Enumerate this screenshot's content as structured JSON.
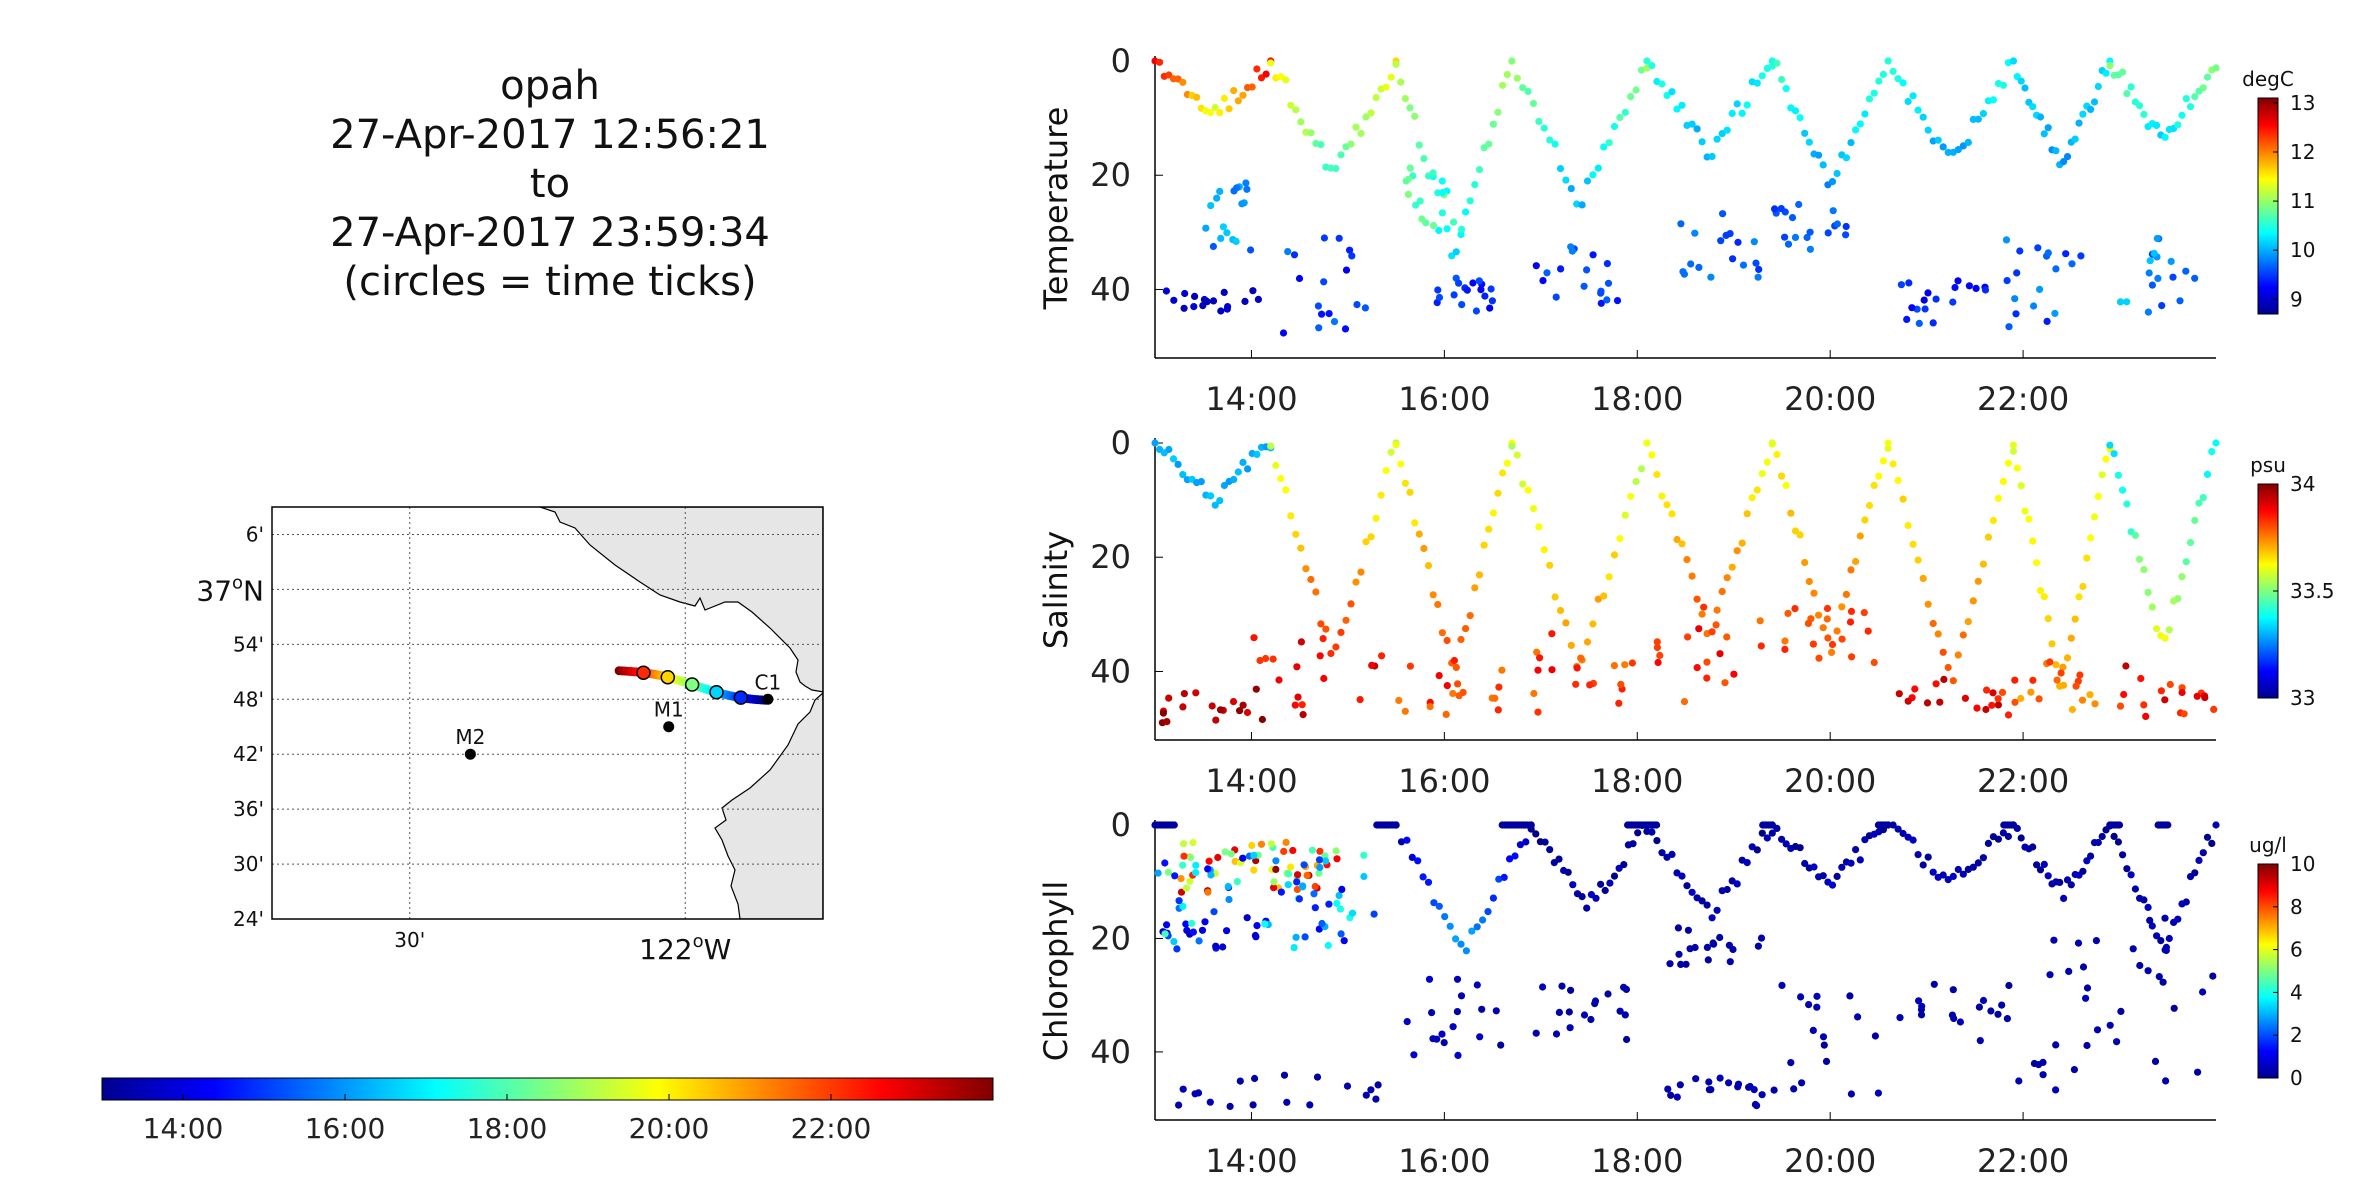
{
  "header": {
    "title_lines": [
      "opah",
      "27-Apr-2017 12:56:21",
      "to",
      "27-Apr-2017 23:59:34",
      "(circles = time ticks)"
    ]
  },
  "time_colorbar": {
    "ticks": [
      "14:00",
      "16:00",
      "18:00",
      "20:00",
      "22:00"
    ],
    "range_hours": [
      13.0,
      24.0
    ],
    "colormap": "jet"
  },
  "map": {
    "lat_ticks": [
      "6'",
      "37°N",
      "54'",
      "48'",
      "42'",
      "36'",
      "30'",
      "24'"
    ],
    "lon_ticks": [
      "30'",
      "122°W"
    ],
    "stations": [
      {
        "name": "M2",
        "lon": -122.39,
        "lat": 36.7
      },
      {
        "name": "M1",
        "lon": -122.03,
        "lat": 36.75
      },
      {
        "name": "C1",
        "lon": -121.85,
        "lat": 36.8
      }
    ],
    "track": {
      "start_lon": -122.12,
      "start_lat": 36.852,
      "end_lon": -121.855,
      "end_lat": 36.8
    },
    "land_color": "#e6e6e6"
  },
  "chart_data": [
    {
      "type": "scatter",
      "ylabel": "Temperature",
      "colorbar": {
        "unit": "degC",
        "ticks": [
          "13",
          "12",
          "11",
          "10",
          "9"
        ],
        "range": [
          8.7,
          13.1
        ],
        "colormap": "jet"
      },
      "x_ticks": [
        "14:00",
        "16:00",
        "18:00",
        "20:00",
        "22:00"
      ],
      "y_ticks": [
        "0",
        "20",
        "40"
      ],
      "xlim": [
        "13:00",
        "24:00"
      ],
      "ylim": [
        0,
        52
      ],
      "y_reversed": true,
      "segments": [
        {
          "t0": 13.0,
          "t1": 14.2,
          "dmax": 10,
          "vhi": 12.6,
          "vlo": 11.3
        },
        {
          "t0": 14.2,
          "t1": 15.5,
          "dmax": 20,
          "vhi": 11.5,
          "vlo": 10.6
        },
        {
          "t0": 15.5,
          "t1": 16.7,
          "dmax": 34,
          "vhi": 11.2,
          "vlo": 10.2
        },
        {
          "t0": 16.7,
          "t1": 18.1,
          "dmax": 25,
          "vhi": 11.0,
          "vlo": 10.0
        },
        {
          "t0": 18.1,
          "t1": 19.4,
          "dmax": 16,
          "vhi": 10.5,
          "vlo": 10.0
        },
        {
          "t0": 19.4,
          "t1": 20.6,
          "dmax": 22,
          "vhi": 10.6,
          "vlo": 9.9
        },
        {
          "t0": 20.6,
          "t1": 21.9,
          "dmax": 18,
          "vhi": 10.5,
          "vlo": 9.9
        },
        {
          "t0": 21.9,
          "t1": 22.9,
          "dmax": 18,
          "vhi": 10.3,
          "vlo": 9.9
        },
        {
          "t0": 22.9,
          "t1": 24.0,
          "dmax": 14,
          "vhi": 10.9,
          "vlo": 10.2
        }
      ],
      "deep": [
        {
          "t0": 13.1,
          "t1": 14.2,
          "dlo": 40,
          "dhi": 44,
          "vlo": 8.9,
          "vhi": 9.1
        },
        {
          "t0": 13.5,
          "t1": 14.0,
          "dlo": 20,
          "dhi": 34,
          "vlo": 9.6,
          "vhi": 10.2
        },
        {
          "t0": 14.3,
          "t1": 15.2,
          "dlo": 30,
          "dhi": 49,
          "vlo": 9.0,
          "vhi": 9.8
        },
        {
          "t0": 15.5,
          "t1": 16.2,
          "dlo": 18,
          "dhi": 30,
          "vlo": 10.3,
          "vhi": 11.0
        },
        {
          "t0": 15.9,
          "t1": 16.6,
          "dlo": 38,
          "dhi": 44,
          "vlo": 9.2,
          "vhi": 9.7
        },
        {
          "t0": 16.9,
          "t1": 17.9,
          "dlo": 32,
          "dhi": 45,
          "vlo": 9.2,
          "vhi": 9.9
        },
        {
          "t0": 18.3,
          "t1": 19.3,
          "dlo": 26,
          "dhi": 38,
          "vlo": 9.4,
          "vhi": 9.9
        },
        {
          "t0": 19.4,
          "t1": 20.2,
          "dlo": 25,
          "dhi": 33,
          "vlo": 9.4,
          "vhi": 9.8
        },
        {
          "t0": 20.7,
          "t1": 21.7,
          "dlo": 38,
          "dhi": 46,
          "vlo": 9.1,
          "vhi": 9.7
        },
        {
          "t0": 21.8,
          "t1": 22.6,
          "dlo": 30,
          "dhi": 48,
          "vlo": 9.3,
          "vhi": 10.0
        },
        {
          "t0": 23.0,
          "t1": 24.0,
          "dlo": 30,
          "dhi": 44,
          "vlo": 9.5,
          "vhi": 10.2
        }
      ]
    },
    {
      "type": "scatter",
      "ylabel": "Salinity",
      "colorbar": {
        "unit": "psu",
        "ticks": [
          "34",
          "33.5",
          "33"
        ],
        "range": [
          33.0,
          34.0
        ],
        "colormap": "jet"
      },
      "x_ticks": [
        "14:00",
        "16:00",
        "18:00",
        "20:00",
        "22:00"
      ],
      "y_ticks": [
        "0",
        "20",
        "40"
      ],
      "xlim": [
        "13:00",
        "24:00"
      ],
      "ylim": [
        0,
        52
      ],
      "y_reversed": true,
      "segments": [
        {
          "t0": 13.0,
          "t1": 14.2,
          "dmax": 10,
          "vhi": 33.3,
          "vlo": 33.3
        },
        {
          "t0": 14.2,
          "t1": 15.5,
          "dmax": 38,
          "vhi": 33.55,
          "vlo": 33.85
        },
        {
          "t0": 15.5,
          "t1": 16.7,
          "dmax": 40,
          "vhi": 33.6,
          "vlo": 33.8
        },
        {
          "t0": 16.7,
          "t1": 18.1,
          "dmax": 40,
          "vhi": 33.55,
          "vlo": 33.75
        },
        {
          "t0": 18.1,
          "t1": 19.4,
          "dmax": 34,
          "vhi": 33.6,
          "vlo": 33.8
        },
        {
          "t0": 19.4,
          "t1": 20.6,
          "dmax": 36,
          "vhi": 33.6,
          "vlo": 33.8
        },
        {
          "t0": 20.6,
          "t1": 21.9,
          "dmax": 42,
          "vhi": 33.6,
          "vlo": 33.8
        },
        {
          "t0": 21.9,
          "t1": 22.9,
          "dmax": 44,
          "vhi": 33.6,
          "vlo": 33.7
        },
        {
          "t0": 22.9,
          "t1": 24.0,
          "dmax": 36,
          "vhi": 33.35,
          "vlo": 33.6
        }
      ],
      "deep": [
        {
          "t0": 13.0,
          "t1": 14.2,
          "dlo": 43,
          "dhi": 49,
          "vlo": 33.9,
          "vhi": 34.0
        },
        {
          "t0": 14.0,
          "t1": 15.4,
          "dlo": 34,
          "dhi": 48,
          "vlo": 33.8,
          "vhi": 33.95
        },
        {
          "t0": 15.4,
          "t1": 16.7,
          "dlo": 38,
          "dhi": 48,
          "vlo": 33.75,
          "vhi": 33.9
        },
        {
          "t0": 16.9,
          "t1": 18.0,
          "dlo": 32,
          "dhi": 48,
          "vlo": 33.75,
          "vhi": 33.9
        },
        {
          "t0": 18.2,
          "t1": 19.3,
          "dlo": 28,
          "dhi": 46,
          "vlo": 33.75,
          "vhi": 33.9
        },
        {
          "t0": 19.4,
          "t1": 20.5,
          "dlo": 28,
          "dhi": 40,
          "vlo": 33.75,
          "vhi": 33.85
        },
        {
          "t0": 20.7,
          "t1": 21.9,
          "dlo": 41,
          "dhi": 48,
          "vlo": 33.8,
          "vhi": 33.95
        },
        {
          "t0": 21.9,
          "t1": 22.8,
          "dlo": 38,
          "dhi": 47,
          "vlo": 33.7,
          "vhi": 33.85
        },
        {
          "t0": 23.0,
          "t1": 24.0,
          "dlo": 38,
          "dhi": 48,
          "vlo": 33.8,
          "vhi": 33.95
        }
      ]
    },
    {
      "type": "scatter",
      "ylabel": "Chlorophyll",
      "colorbar": {
        "unit": "ug/l",
        "ticks": [
          "10",
          "8",
          "6",
          "4",
          "2",
          "0"
        ],
        "range": [
          0,
          10
        ],
        "colormap": "jet"
      },
      "x_ticks": [
        "14:00",
        "16:00",
        "18:00",
        "20:00",
        "22:00"
      ],
      "y_ticks": [
        "0",
        "20",
        "40"
      ],
      "xlim": [
        "13:00",
        "24:00"
      ],
      "ylim": [
        0,
        52
      ],
      "y_reversed": true,
      "segments": [
        {
          "t0": 15.5,
          "t1": 16.9,
          "dmax": 22,
          "vhi": 0.5,
          "vlo": 3.0
        },
        {
          "t0": 16.9,
          "t1": 18.1,
          "dmax": 14,
          "vhi": 0.3,
          "vlo": 0.5
        },
        {
          "t0": 18.1,
          "t1": 19.4,
          "dmax": 16,
          "vhi": 0.3,
          "vlo": 0.5
        },
        {
          "t0": 19.4,
          "t1": 20.6,
          "dmax": 10,
          "vhi": 0.3,
          "vlo": 0.5
        },
        {
          "t0": 20.6,
          "t1": 21.9,
          "dmax": 10,
          "vhi": 0.3,
          "vlo": 0.5
        },
        {
          "t0": 21.9,
          "t1": 22.9,
          "dmax": 12,
          "vhi": 0.3,
          "vlo": 0.5
        },
        {
          "t0": 22.9,
          "t1": 24.0,
          "dmax": 22,
          "vhi": 0.3,
          "vlo": 0.6
        }
      ],
      "blooms": [
        {
          "t0": 13.1,
          "t1": 14.9,
          "dlo": 3,
          "dhi": 12,
          "vlo": 4.0,
          "vhi": 9.8
        },
        {
          "t0": 13.0,
          "t1": 15.3,
          "dlo": 5,
          "dhi": 22,
          "vlo": 1.0,
          "vhi": 4.5
        }
      ],
      "deep": [
        {
          "t0": 13.0,
          "t1": 14.2,
          "dlo": 16,
          "dhi": 22,
          "vlo": 0.5,
          "vhi": 1.5
        },
        {
          "t0": 13.2,
          "t1": 15.4,
          "dlo": 44,
          "dhi": 50,
          "vlo": 0.3,
          "vhi": 0.6
        },
        {
          "t0": 15.6,
          "t1": 16.6,
          "dlo": 26,
          "dhi": 42,
          "vlo": 0.3,
          "vhi": 0.8
        },
        {
          "t0": 16.9,
          "t1": 18.0,
          "dlo": 28,
          "dhi": 40,
          "vlo": 0.3,
          "vhi": 0.6
        },
        {
          "t0": 18.3,
          "t1": 19.3,
          "dlo": 18,
          "dhi": 25,
          "vlo": 0.3,
          "vhi": 0.6
        },
        {
          "t0": 18.3,
          "t1": 19.4,
          "dlo": 44,
          "dhi": 50,
          "vlo": 0.3,
          "vhi": 0.6
        },
        {
          "t0": 19.4,
          "t1": 20.5,
          "dlo": 26,
          "dhi": 48,
          "vlo": 0.3,
          "vhi": 0.6
        },
        {
          "t0": 20.7,
          "t1": 21.9,
          "dlo": 28,
          "dhi": 40,
          "vlo": 0.3,
          "vhi": 0.6
        },
        {
          "t0": 21.9,
          "t1": 22.9,
          "dlo": 20,
          "dhi": 48,
          "vlo": 0.3,
          "vhi": 0.6
        },
        {
          "t0": 22.9,
          "t1": 24.0,
          "dlo": 16,
          "dhi": 46,
          "vlo": 0.3,
          "vhi": 0.6
        }
      ],
      "surface_runs": [
        {
          "t0": 13.0,
          "t1": 13.2
        },
        {
          "t0": 15.3,
          "t1": 15.5
        },
        {
          "t0": 16.6,
          "t1": 16.9
        },
        {
          "t0": 17.9,
          "t1": 18.2
        },
        {
          "t0": 19.3,
          "t1": 19.4
        },
        {
          "t0": 20.5,
          "t1": 20.6
        },
        {
          "t0": 21.8,
          "t1": 21.9
        },
        {
          "t0": 22.9,
          "t1": 23.0
        },
        {
          "t0": 23.4,
          "t1": 23.5
        }
      ]
    }
  ]
}
